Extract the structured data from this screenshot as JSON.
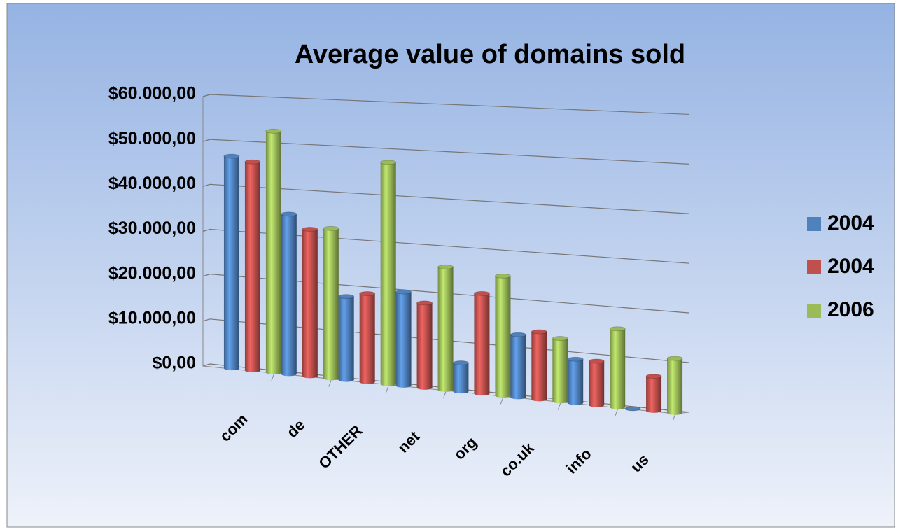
{
  "chart_data": {
    "type": "bar3d",
    "title": "Average value of domains sold",
    "categories": [
      "com",
      "de",
      "OTHER",
      "net",
      "org",
      "co.uk",
      "info",
      "us"
    ],
    "series": [
      {
        "name": "2004",
        "color": "#4f81bd",
        "values": [
          47000,
          35000,
          18000,
          20000,
          6000,
          13000,
          9000,
          0
        ]
      },
      {
        "name": "2004",
        "color": "#c0504d",
        "values": [
          46000,
          32000,
          19000,
          18000,
          21000,
          14000,
          9000,
          7000
        ]
      },
      {
        "name": "2006",
        "color": "#9bbb59",
        "values": [
          53000,
          32500,
          47500,
          26000,
          25000,
          13000,
          16000,
          11000
        ]
      }
    ],
    "ylim": [
      0,
      60000
    ],
    "yticks": [
      {
        "value": 0,
        "label": "$0,00"
      },
      {
        "value": 10000,
        "label": "$10.000,00"
      },
      {
        "value": 20000,
        "label": "$20.000,00"
      },
      {
        "value": 30000,
        "label": "$30.000,00"
      },
      {
        "value": 40000,
        "label": "$40.000,00"
      },
      {
        "value": 50000,
        "label": "$50.000,00"
      },
      {
        "value": 60000,
        "label": "$60.000,00"
      }
    ],
    "grid": true,
    "legend": "right"
  }
}
